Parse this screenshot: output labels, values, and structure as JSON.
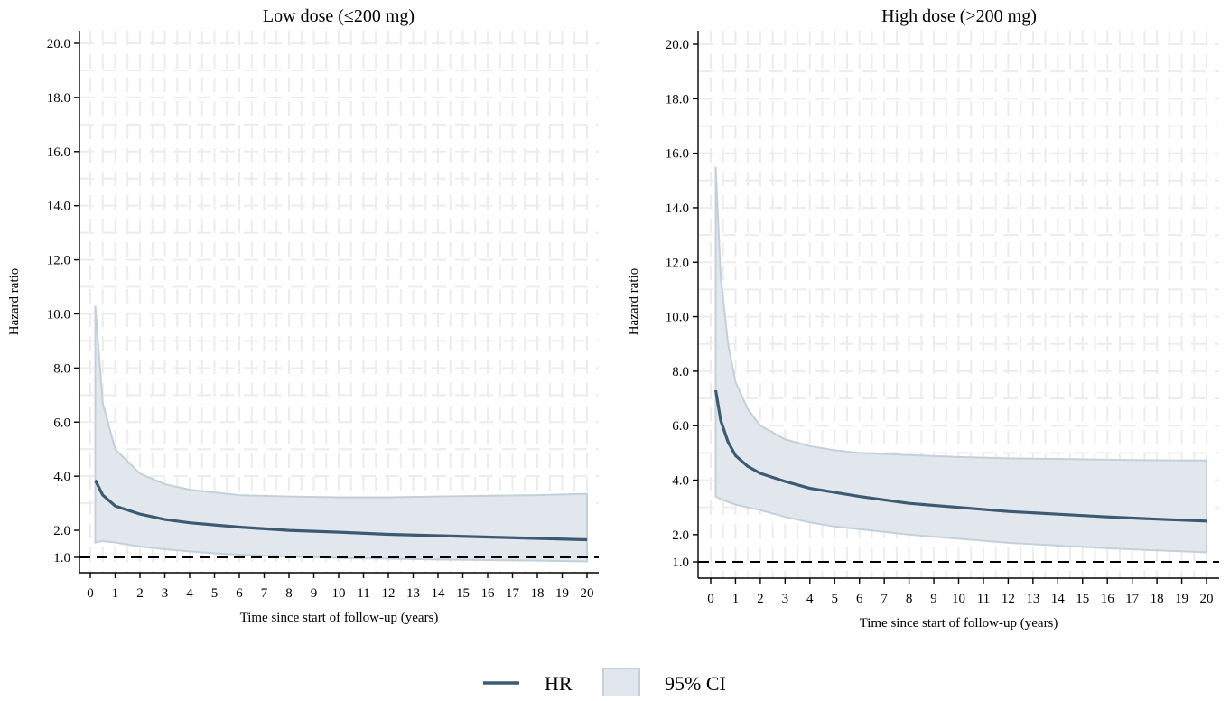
{
  "colors": {
    "hr_line": "#3d5a73",
    "ci_fill": "#e1e7ec",
    "ci_edge": "#c4d0d9",
    "reference": "#000000",
    "grid": "#ececec"
  },
  "legend": {
    "placement": "bottom-center",
    "items": [
      {
        "label": "HR",
        "kind": "line"
      },
      {
        "label": "95% CI",
        "kind": "area"
      }
    ]
  },
  "chart_data": [
    {
      "type": "line",
      "title": "Low dose (≤200 mg)",
      "xlabel": "Time since start of follow-up (years)",
      "ylabel": "Hazard ratio",
      "xlim": [
        0,
        20
      ],
      "ylim": [
        1,
        20
      ],
      "xticks": [
        "0",
        "1",
        "2",
        "3",
        "4",
        "5",
        "6",
        "7",
        "8",
        "9",
        "10",
        "11",
        "12",
        "13",
        "14",
        "15",
        "16",
        "17",
        "18",
        "19",
        "20"
      ],
      "yticks": [
        "1.0",
        "2.0",
        "4.0",
        "6.0",
        "8.0",
        "10.0",
        "12.0",
        "14.0",
        "16.0",
        "18.0",
        "20.0"
      ],
      "grid": true,
      "reference_line": 1.0,
      "series": [
        {
          "name": "HR",
          "x": [
            0.2,
            0.5,
            1,
            2,
            3,
            4,
            5,
            6,
            8,
            10,
            12,
            14,
            16,
            18,
            20
          ],
          "y": [
            3.85,
            3.3,
            2.9,
            2.6,
            2.4,
            2.28,
            2.2,
            2.12,
            2.0,
            1.93,
            1.85,
            1.8,
            1.75,
            1.7,
            1.65
          ]
        },
        {
          "name": "95% CI",
          "x": [
            0.2,
            0.5,
            1,
            2,
            3,
            4,
            5,
            6,
            8,
            10,
            12,
            14,
            16,
            18,
            20
          ],
          "lower": [
            1.55,
            1.6,
            1.55,
            1.4,
            1.3,
            1.22,
            1.15,
            1.1,
            1.03,
            0.98,
            0.95,
            0.92,
            0.9,
            0.88,
            0.85
          ],
          "upper": [
            10.3,
            6.7,
            5.0,
            4.1,
            3.7,
            3.5,
            3.4,
            3.3,
            3.25,
            3.22,
            3.22,
            3.25,
            3.28,
            3.3,
            3.35
          ]
        }
      ]
    },
    {
      "type": "line",
      "title": "High dose (>200 mg)",
      "xlabel": "Time since start of follow-up (years)",
      "ylabel": "Hazard ratio",
      "xlim": [
        0,
        20
      ],
      "ylim": [
        1,
        20
      ],
      "xticks": [
        "0",
        "1",
        "2",
        "3",
        "4",
        "5",
        "6",
        "7",
        "8",
        "9",
        "10",
        "11",
        "12",
        "13",
        "14",
        "15",
        "16",
        "17",
        "18",
        "19",
        "20"
      ],
      "yticks": [
        "1.0",
        "2.0",
        "4.0",
        "6.0",
        "8.0",
        "10.0",
        "12.0",
        "14.0",
        "16.0",
        "18.0",
        "20.0"
      ],
      "grid": true,
      "reference_line": 1.0,
      "series": [
        {
          "name": "HR",
          "x": [
            0.2,
            0.4,
            0.7,
            1,
            1.5,
            2,
            3,
            4,
            5,
            6,
            8,
            10,
            12,
            14,
            16,
            18,
            20
          ],
          "y": [
            7.3,
            6.2,
            5.4,
            4.9,
            4.5,
            4.25,
            3.95,
            3.7,
            3.55,
            3.4,
            3.15,
            3.0,
            2.85,
            2.75,
            2.65,
            2.57,
            2.5
          ],
          "lower": [
            3.4,
            3.3,
            3.2,
            3.1,
            3.0,
            2.9,
            2.65,
            2.45,
            2.3,
            2.2,
            2.0,
            1.85,
            1.7,
            1.6,
            1.5,
            1.42,
            1.35
          ],
          "upper": [
            15.5,
            11.5,
            9.0,
            7.6,
            6.6,
            6.0,
            5.5,
            5.25,
            5.1,
            5.0,
            4.92,
            4.85,
            4.8,
            4.78,
            4.75,
            4.73,
            4.72
          ]
        }
      ]
    }
  ]
}
